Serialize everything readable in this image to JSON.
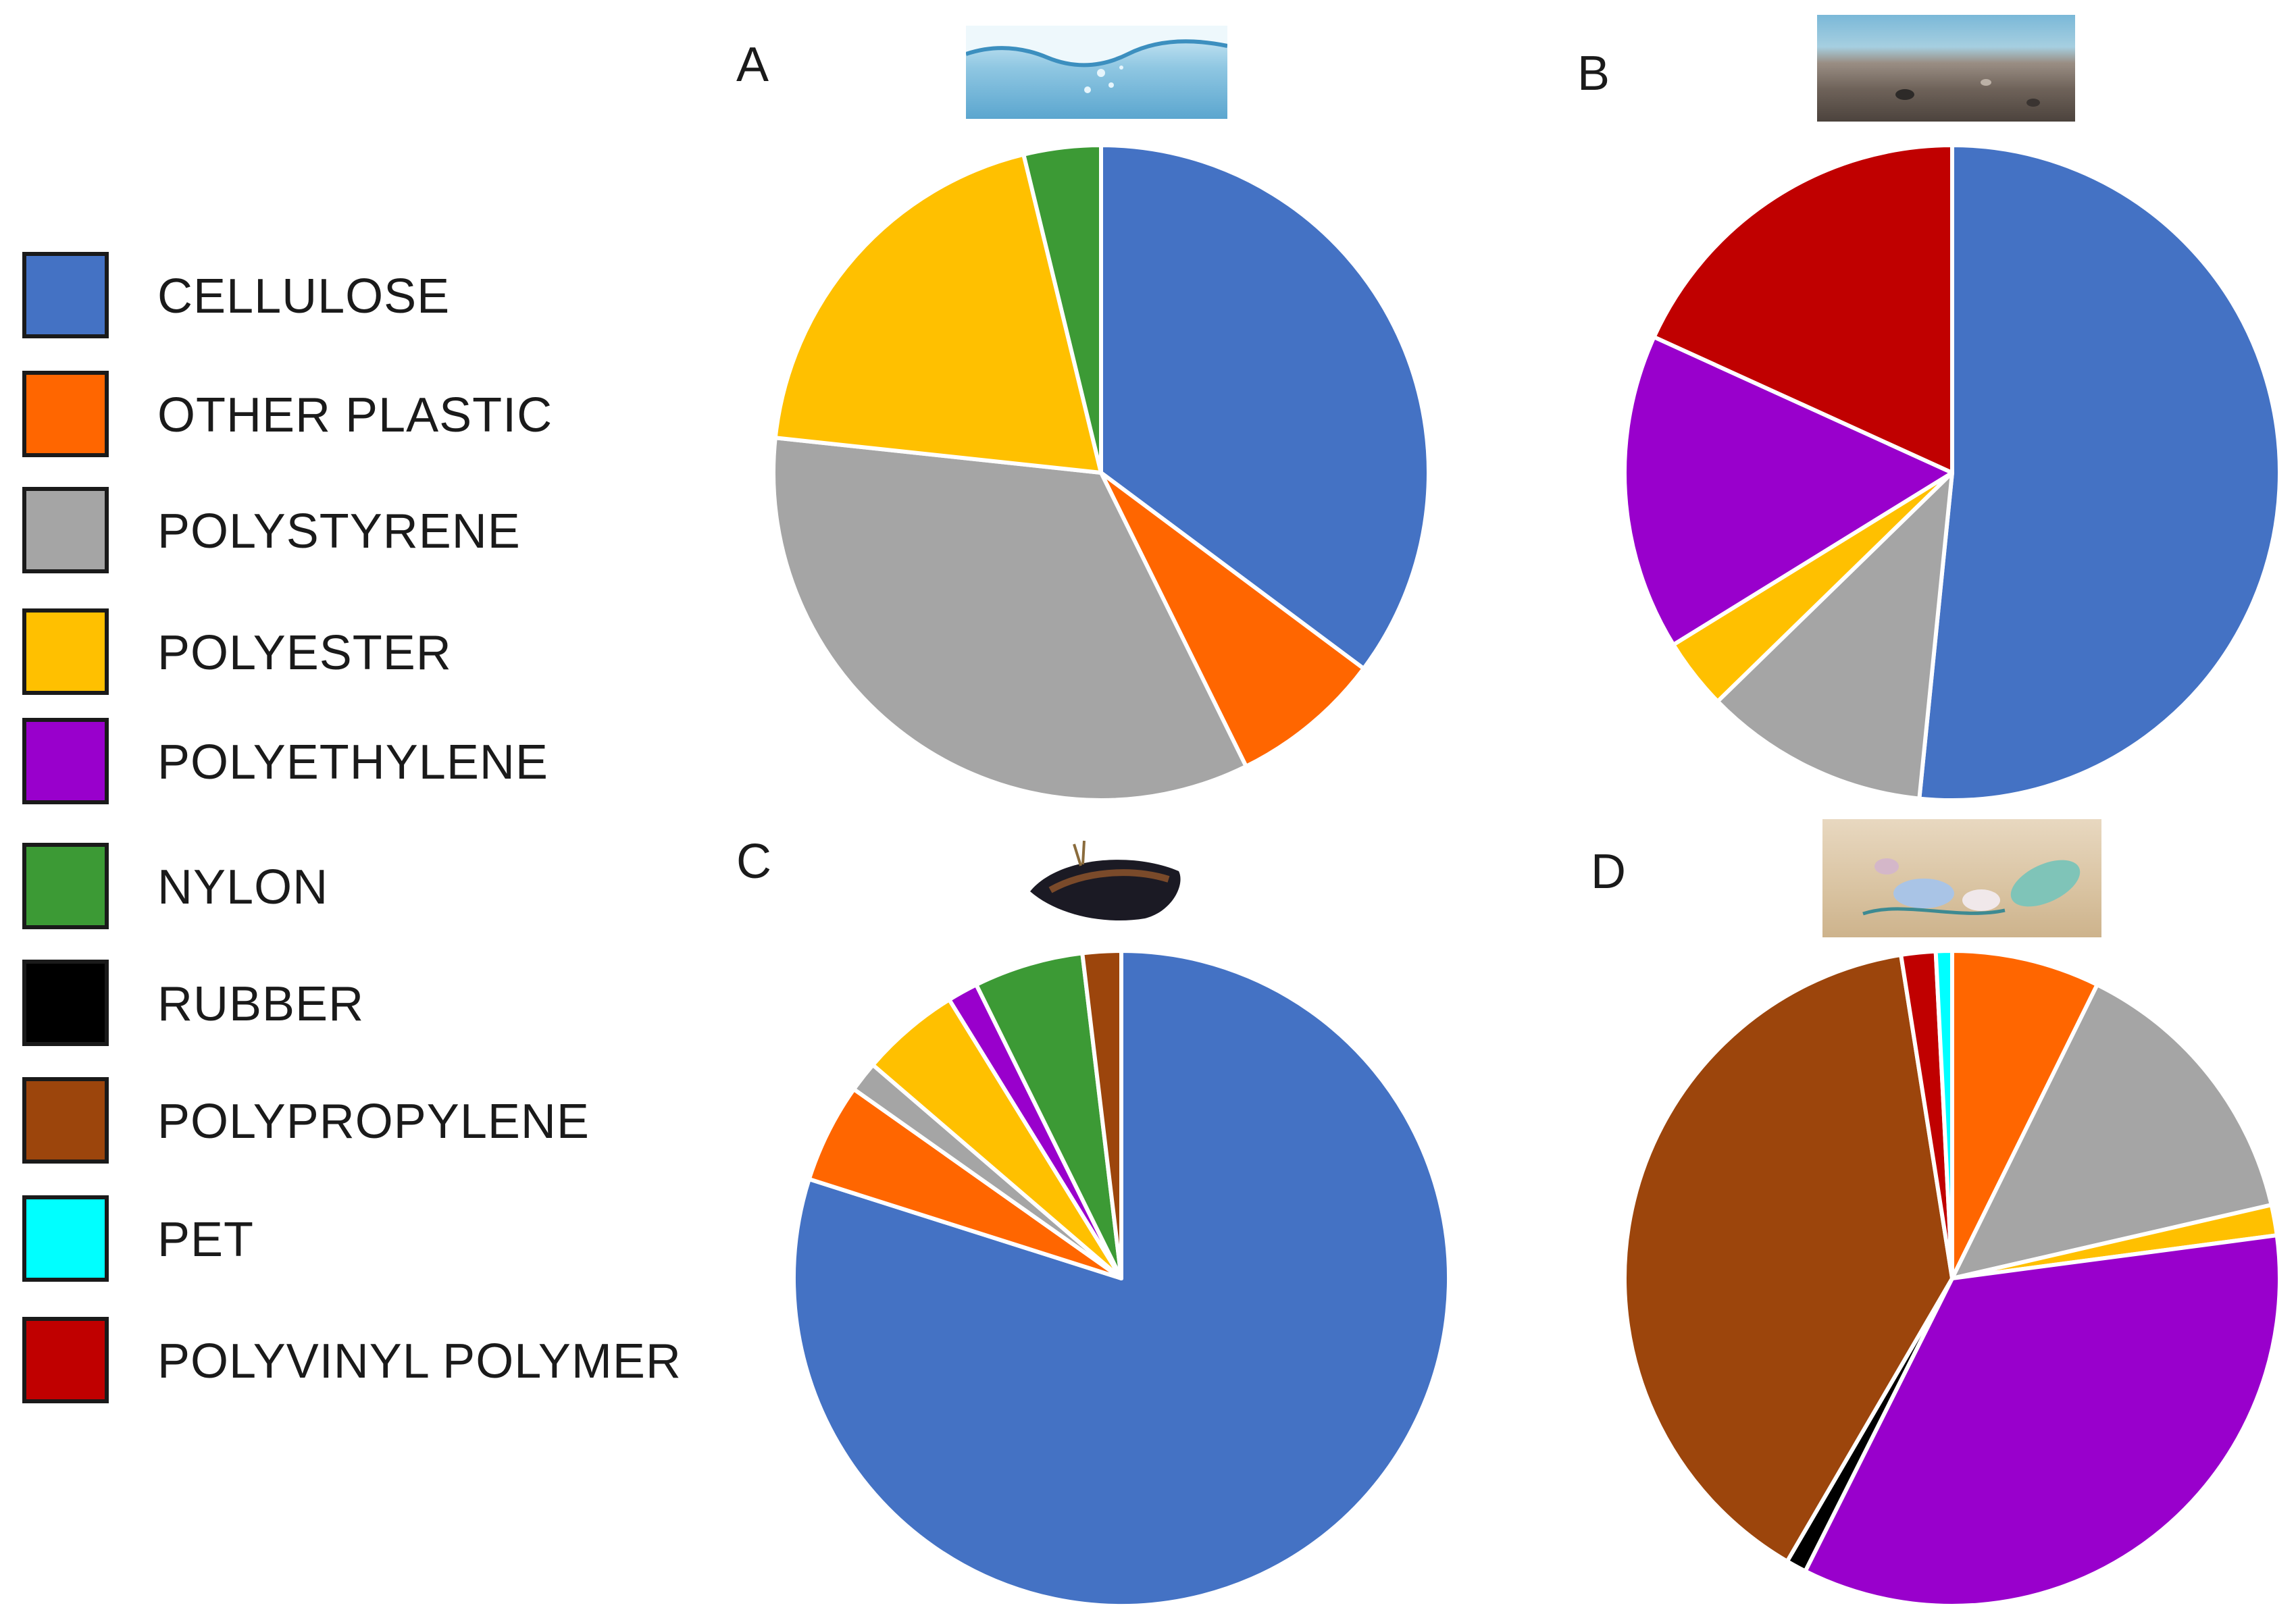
{
  "legend": [
    {
      "label": "CELLULOSE",
      "color": "#4472C4"
    },
    {
      "label": "OTHER PLASTIC",
      "color": "#FF6600"
    },
    {
      "label": "POLYSTYRENE",
      "color": "#A5A5A5"
    },
    {
      "label": "POLYESTER",
      "color": "#FFC000"
    },
    {
      "label": "POLYETHYLENE",
      "color": "#9900CC"
    },
    {
      "label": "NYLON",
      "color": "#3C9A35"
    },
    {
      "label": "RUBBER",
      "color": "#000000"
    },
    {
      "label": "POLYPROPYLENE",
      "color": "#9C450C"
    },
    {
      "label": "PET",
      "color": "#00FFFF"
    },
    {
      "label": "POLYVINYL POLYMER",
      "color": "#C00000"
    }
  ],
  "panels": {
    "A": {
      "label": "A",
      "image": "water-icon"
    },
    "B": {
      "label": "B",
      "image": "sediment-icon"
    },
    "C": {
      "label": "C",
      "image": "mussel-icon"
    },
    "D": {
      "label": "D",
      "image": "beach-litter-icon"
    }
  },
  "chart_data": [
    {
      "type": "pie",
      "panel": "A",
      "start_angle_deg": 0,
      "direction": "clockwise",
      "categories": [
        "CELLULOSE",
        "OTHER PLASTIC",
        "POLYSTYRENE",
        "POLYESTER",
        "NYLON"
      ],
      "values": [
        35.2,
        7.5,
        34.0,
        19.5,
        3.8
      ]
    },
    {
      "type": "pie",
      "panel": "B",
      "start_angle_deg": 0,
      "direction": "clockwise",
      "categories": [
        "CELLULOSE",
        "POLYSTYRENE",
        "POLYESTER",
        "POLYETHYLENE",
        "POLYVINYL POLYMER"
      ],
      "values": [
        51.6,
        11.1,
        3.5,
        15.6,
        18.2
      ]
    },
    {
      "type": "pie",
      "panel": "C",
      "start_angle_deg": 0,
      "direction": "clockwise",
      "categories": [
        "CELLULOSE",
        "OTHER PLASTIC",
        "POLYSTYRENE",
        "POLYESTER",
        "POLYETHYLENE",
        "NYLON",
        "POLYPROPYLENE"
      ],
      "values": [
        79.9,
        4.9,
        1.5,
        4.9,
        1.5,
        5.4,
        1.9
      ]
    },
    {
      "type": "pie",
      "panel": "D",
      "start_angle_deg": 0,
      "direction": "clockwise",
      "categories": [
        "OTHER PLASTIC",
        "POLYSTYRENE",
        "POLYESTER",
        "POLYETHYLENE",
        "RUBBER",
        "POLYPROPYLENE",
        "POLYVINYL POLYMER",
        "PET"
      ],
      "values": [
        7.3,
        14.1,
        1.5,
        34.5,
        1.0,
        39.1,
        1.7,
        0.8
      ]
    }
  ]
}
